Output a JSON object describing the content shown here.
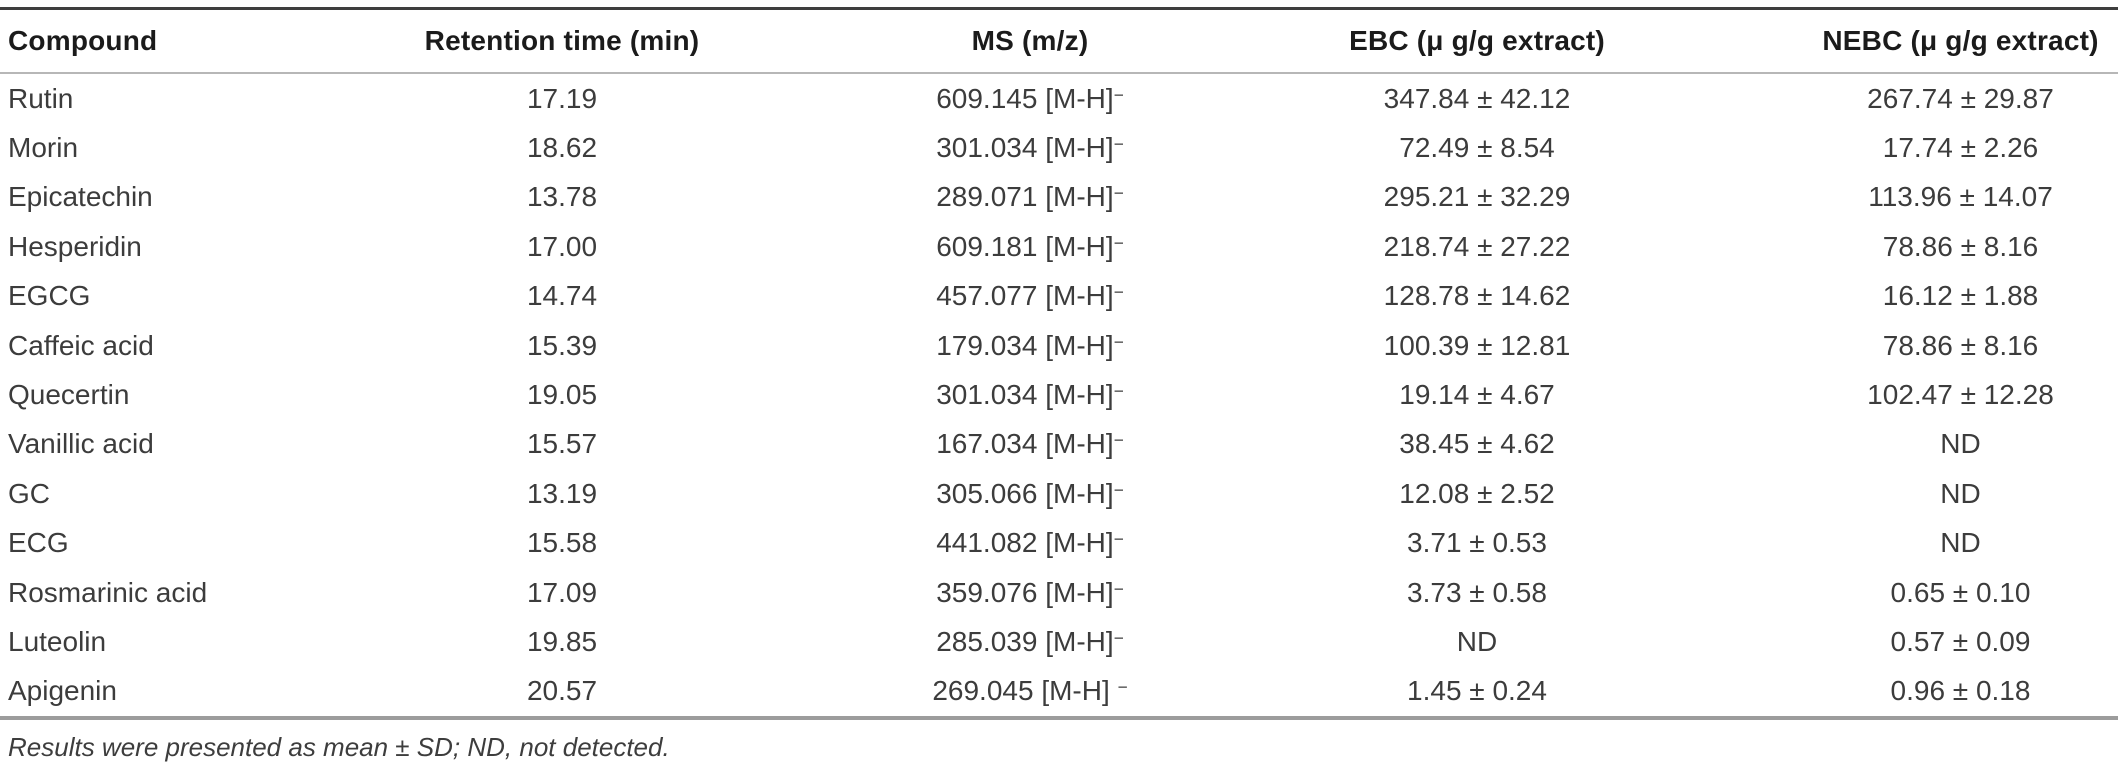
{
  "table": {
    "columns": [
      {
        "label": "Compound"
      },
      {
        "label": "Retention time (min)"
      },
      {
        "label": "MS (m/z)"
      },
      {
        "label": "EBC (μ g/g extract)"
      },
      {
        "label": "NEBC (μ g/g extract)"
      }
    ],
    "rows": [
      {
        "compound": "Rutin",
        "rt": "17.19",
        "ms": "609.145 [M-H]",
        "ms_sup": "−",
        "ebc": "347.84 ± 42.12",
        "nebc": "267.74 ± 29.87"
      },
      {
        "compound": "Morin",
        "rt": "18.62",
        "ms": "301.034 [M-H]",
        "ms_sup": "−",
        "ebc": "72.49 ± 8.54",
        "nebc": "17.74 ± 2.26"
      },
      {
        "compound": "Epicatechin",
        "rt": "13.78",
        "ms": "289.071 [M-H]",
        "ms_sup": "−",
        "ebc": "295.21 ± 32.29",
        "nebc": "113.96 ± 14.07"
      },
      {
        "compound": "Hesperidin",
        "rt": "17.00",
        "ms": "609.181 [M-H]",
        "ms_sup": "−",
        "ebc": "218.74 ± 27.22",
        "nebc": "78.86 ± 8.16"
      },
      {
        "compound": "EGCG",
        "rt": "14.74",
        "ms": "457.077 [M-H]",
        "ms_sup": "−",
        "ebc": "128.78 ± 14.62",
        "nebc": "16.12 ± 1.88"
      },
      {
        "compound": "Caffeic acid",
        "rt": "15.39",
        "ms": "179.034 [M-H]",
        "ms_sup": "−",
        "ebc": "100.39 ± 12.81",
        "nebc": "78.86 ± 8.16"
      },
      {
        "compound": "Quecertin",
        "rt": "19.05",
        "ms": "301.034 [M-H]",
        "ms_sup": "−",
        "ebc": "19.14 ± 4.67",
        "nebc": "102.47 ± 12.28"
      },
      {
        "compound": "Vanillic acid",
        "rt": "15.57",
        "ms": "167.034 [M-H]",
        "ms_sup": "−",
        "ebc": "38.45 ± 4.62",
        "nebc": "ND"
      },
      {
        "compound": "GC",
        "rt": "13.19",
        "ms": "305.066 [M-H]",
        "ms_sup": "−",
        "ebc": "12.08 ± 2.52",
        "nebc": "ND"
      },
      {
        "compound": "ECG",
        "rt": "15.58",
        "ms": "441.082 [M-H]",
        "ms_sup": "−",
        "ebc": "3.71 ± 0.53",
        "nebc": "ND"
      },
      {
        "compound": "Rosmarinic acid",
        "rt": "17.09",
        "ms": "359.076 [M-H]",
        "ms_sup": "−",
        "ebc": "3.73 ± 0.58",
        "nebc": "0.65 ± 0.10"
      },
      {
        "compound": "Luteolin",
        "rt": "19.85",
        "ms": "285.039 [M-H]",
        "ms_sup": "−",
        "ebc": "ND",
        "nebc": "0.57 ± 0.09"
      },
      {
        "compound": "Apigenin",
        "rt": "20.57",
        "ms": "269.045 [M-H] ",
        "ms_sup": "−",
        "ebc": "1.45 ± 0.24",
        "nebc": "0.96 ± 0.18"
      }
    ],
    "footnote": "Results were presented as mean ± SD; ND, not detected."
  }
}
